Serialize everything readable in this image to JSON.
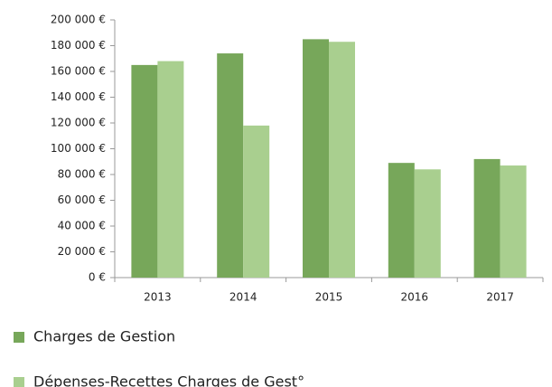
{
  "chart_data": {
    "type": "bar",
    "categories": [
      "2013",
      "2014",
      "2015",
      "2016",
      "2017"
    ],
    "series": [
      {
        "name": "Charges de Gestion",
        "color": "#77a75a",
        "values": [
          165000,
          174000,
          185000,
          89000,
          92000
        ]
      },
      {
        "name": "Dépenses-Recettes Charges de Gest°",
        "color": "#a9cf8f",
        "values": [
          168000,
          118000,
          183000,
          84000,
          87000
        ]
      }
    ],
    "ylim": [
      0,
      200000
    ],
    "yticks": [
      {
        "value": 0,
        "label": "0 €"
      },
      {
        "value": 20000,
        "label": "20 000 €"
      },
      {
        "value": 40000,
        "label": "40 000 €"
      },
      {
        "value": 60000,
        "label": "60 000 €"
      },
      {
        "value": 80000,
        "label": "80 000 €"
      },
      {
        "value": 100000,
        "label": "100 000 €"
      },
      {
        "value": 120000,
        "label": "120 000 €"
      },
      {
        "value": 140000,
        "label": "140 000 €"
      },
      {
        "value": 160000,
        "label": "160 000 €"
      },
      {
        "value": 180000,
        "label": "180 000 €"
      },
      {
        "value": 200000,
        "label": "200 000 €"
      }
    ],
    "grid": false,
    "legend": "bottom"
  }
}
